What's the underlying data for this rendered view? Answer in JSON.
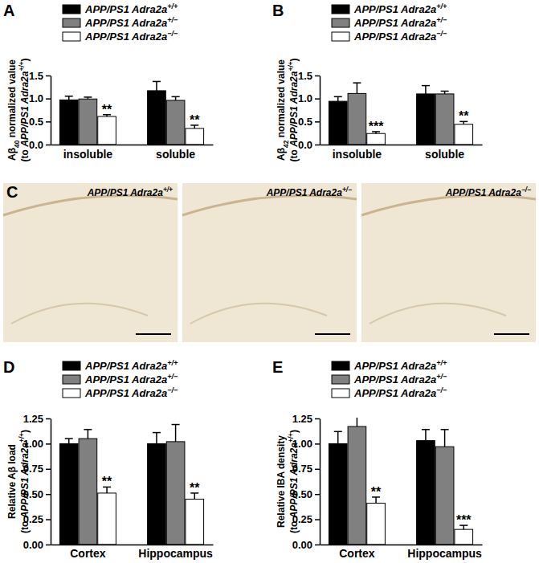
{
  "chart_data": [
    {
      "type": "bar",
      "title": "A",
      "y_label": "Aβ40 normalized value (to APP/PS1 Adra2a+/+)",
      "categories": [
        "insoluble",
        "soluble"
      ],
      "series": [
        {
          "name": "APP/PS1 Adra2a+/+",
          "color": "#000000",
          "values": [
            0.97,
            1.17
          ],
          "errors": [
            0.08,
            0.2
          ]
        },
        {
          "name": "APP/PS1 Adra2a+/−",
          "color": "#808080",
          "values": [
            0.99,
            0.96
          ],
          "errors": [
            0.04,
            0.08
          ]
        },
        {
          "name": "APP/PS1 Adra2a−/−",
          "color": "#ffffff",
          "values": [
            0.61,
            0.35
          ],
          "errors": [
            0.04,
            0.07
          ]
        }
      ],
      "ylim": [
        0,
        1.5
      ],
      "yticks": [
        {
          "value": 0,
          "label": "0.0"
        },
        {
          "value": 0.5,
          "label": "0.5"
        },
        {
          "value": 1,
          "label": "1.0"
        },
        {
          "value": 1.5,
          "label": "1.5"
        }
      ],
      "legend": "top-left",
      "annotations": [
        {
          "series": 2,
          "category": 0,
          "text": "**"
        },
        {
          "series": 2,
          "category": 1,
          "text": "**"
        }
      ]
    },
    {
      "type": "bar",
      "title": "B",
      "y_label": "Aβ42 normalized value (to APP/PS1 Adra2a+/+)",
      "categories": [
        "insoluble",
        "soluble"
      ],
      "series": [
        {
          "name": "APP/PS1 Adra2a+/+",
          "color": "#000000",
          "values": [
            0.94,
            1.1
          ],
          "errors": [
            0.1,
            0.18
          ]
        },
        {
          "name": "APP/PS1 Adra2a+/−",
          "color": "#808080",
          "values": [
            1.11,
            1.1
          ],
          "errors": [
            0.23,
            0.06
          ]
        },
        {
          "name": "APP/PS1 Adra2a−/−",
          "color": "#ffffff",
          "values": [
            0.24,
            0.44
          ],
          "errors": [
            0.04,
            0.06
          ]
        }
      ],
      "ylim": [
        0,
        1.5
      ],
      "yticks": [
        {
          "value": 0,
          "label": "0.0"
        },
        {
          "value": 0.5,
          "label": "0.5"
        },
        {
          "value": 1,
          "label": "1.0"
        },
        {
          "value": 1.5,
          "label": "1.5"
        }
      ],
      "legend": "top-left",
      "annotations": [
        {
          "series": 2,
          "category": 0,
          "text": "***"
        },
        {
          "series": 2,
          "category": 1,
          "text": "**"
        }
      ]
    },
    {
      "type": "bar",
      "title": "D",
      "y_label": "Relative Aβ load (to APP/PS1 Adra2a+/+)",
      "categories": [
        "Cortex",
        "Hippocampus"
      ],
      "series": [
        {
          "name": "APP/PS1 Adra2a+/+",
          "color": "#000000",
          "values": [
            1.0,
            1.0
          ],
          "errors": [
            0.05,
            0.11
          ]
        },
        {
          "name": "APP/PS1 Adra2a+/−",
          "color": "#808080",
          "values": [
            1.05,
            1.02
          ],
          "errors": [
            0.09,
            0.17
          ]
        },
        {
          "name": "APP/PS1 Adra2a−/−",
          "color": "#ffffff",
          "values": [
            0.51,
            0.45
          ],
          "errors": [
            0.06,
            0.06
          ]
        }
      ],
      "ylim": [
        0,
        1.25
      ],
      "yticks": [
        {
          "value": 0,
          "label": "0.00"
        },
        {
          "value": 0.25,
          "label": "0.25"
        },
        {
          "value": 0.5,
          "label": "0.50"
        },
        {
          "value": 0.75,
          "label": "0.75"
        },
        {
          "value": 1,
          "label": "1.00"
        },
        {
          "value": 1.25,
          "label": "1.25"
        }
      ],
      "legend": "top-left",
      "annotations": [
        {
          "series": 2,
          "category": 0,
          "text": "**"
        },
        {
          "series": 2,
          "category": 1,
          "text": "**"
        }
      ]
    },
    {
      "type": "bar",
      "title": "E",
      "y_label": "Relative IBA density (to APP/PS1 Adra2a+/+)",
      "categories": [
        "Cortex",
        "Hippocampus"
      ],
      "series": [
        {
          "name": "APP/PS1 Adra2a+/+",
          "color": "#000000",
          "values": [
            1.0,
            1.03
          ],
          "errors": [
            0.12,
            0.11
          ]
        },
        {
          "name": "APP/PS1 Adra2a+/−",
          "color": "#808080",
          "values": [
            1.17,
            0.97
          ],
          "errors": [
            0.12,
            0.17
          ]
        },
        {
          "name": "APP/PS1 Adra2a−/−",
          "color": "#ffffff",
          "values": [
            0.41,
            0.15
          ],
          "errors": [
            0.06,
            0.04
          ]
        }
      ],
      "ylim": [
        0,
        1.25
      ],
      "yticks": [
        {
          "value": 0,
          "label": "0.00"
        },
        {
          "value": 0.25,
          "label": "0.25"
        },
        {
          "value": 0.5,
          "label": "0.50"
        },
        {
          "value": 0.75,
          "label": "0.75"
        },
        {
          "value": 1,
          "label": "1.00"
        },
        {
          "value": 1.25,
          "label": "1.25"
        }
      ],
      "legend": "top-left",
      "annotations": [
        {
          "series": 2,
          "category": 0,
          "text": "**"
        },
        {
          "series": 2,
          "category": 1,
          "text": "***"
        }
      ]
    }
  ],
  "image_panel": {
    "label": "C",
    "images": [
      "APP/PS1 Adra2a+/+",
      "APP/PS1 Adra2a+/−",
      "APP/PS1 Adra2a−/−"
    ]
  }
}
